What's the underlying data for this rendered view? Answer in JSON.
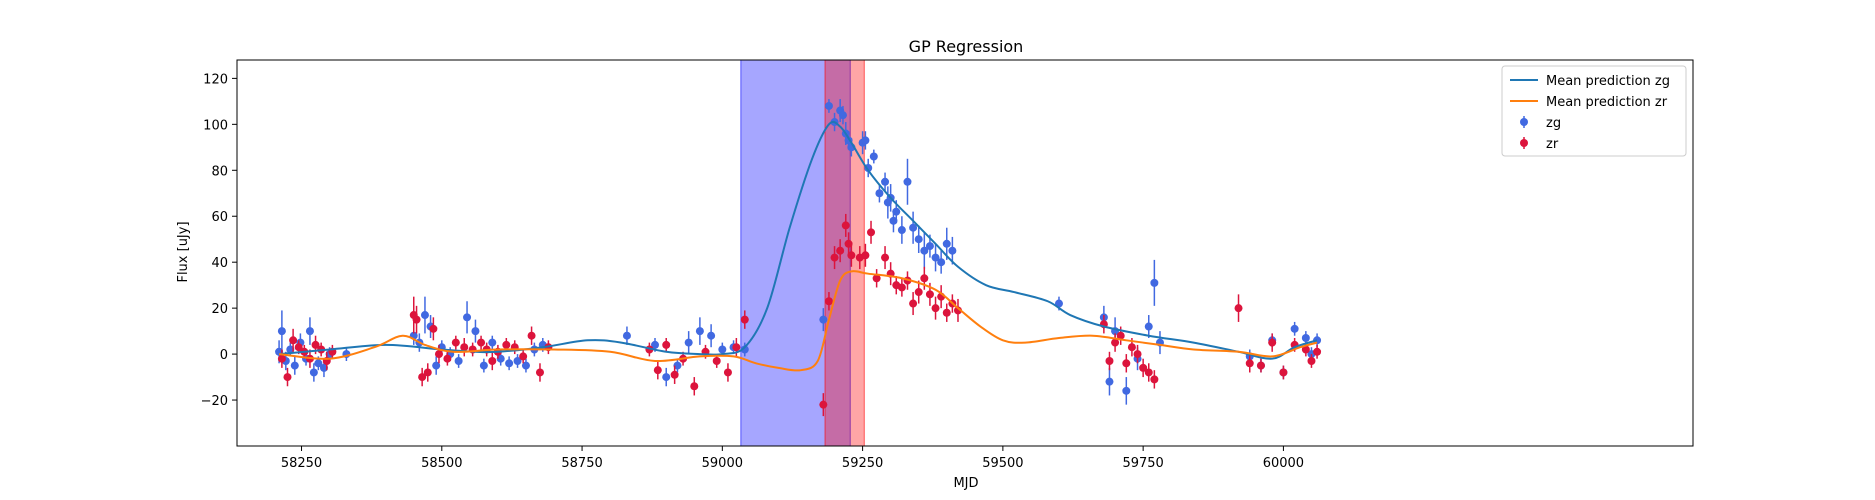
{
  "chart_data": {
    "type": "scatter",
    "title": "GP Regression",
    "xlabel": "MJD",
    "ylabel": "Flux [uJy]",
    "xlim": [
      58135,
      60730
    ],
    "ylim": [
      -40,
      128
    ],
    "xticks": [
      58250,
      58500,
      58750,
      59000,
      59250,
      59500,
      59750,
      60000
    ],
    "yticks": [
      -20,
      0,
      20,
      40,
      60,
      80,
      100,
      120
    ],
    "grid": false,
    "legend_position": "top-right",
    "colors": {
      "zg_line": "#1f77b4",
      "zr_line": "#ff7f0e",
      "zg_points": "#4169e1",
      "zr_points": "#dc143c",
      "zg_band": "#0000ff",
      "zr_band": "#ff0000"
    },
    "shaded_regions": [
      {
        "x0": 59033,
        "x1": 59228,
        "color": "#0000ff"
      },
      {
        "x0": 59183,
        "x1": 59253,
        "color": "#ff0000"
      }
    ],
    "lines": [
      {
        "name": "Mean prediction zg",
        "color": "#1f77b4",
        "x": [
          58210,
          58300,
          58400,
          58500,
          58560,
          58600,
          58680,
          58760,
          58820,
          58900,
          58960,
          59000,
          59040,
          59080,
          59120,
          59160,
          59190,
          59210,
          59230,
          59260,
          59300,
          59340,
          59380,
          59420,
          59470,
          59520,
          59580,
          59620,
          59680,
          59760,
          59840,
          59920,
          59980,
          60020,
          60060
        ],
        "y": [
          0,
          2,
          4,
          2,
          1,
          1,
          3,
          6,
          5,
          1,
          0,
          0,
          3,
          20,
          55,
          85,
          100,
          99,
          92,
          80,
          68,
          58,
          48,
          38,
          30,
          27,
          23,
          17,
          12,
          8,
          5,
          1,
          -2,
          3,
          6
        ]
      },
      {
        "name": "Mean prediction zr",
        "color": "#ff7f0e",
        "x": [
          58210,
          58300,
          58380,
          58430,
          58470,
          58520,
          58600,
          58700,
          58800,
          58880,
          58960,
          59020,
          59060,
          59100,
          59140,
          59170,
          59190,
          59210,
          59230,
          59260,
          59320,
          59380,
          59420,
          59460,
          59500,
          59540,
          59600,
          59660,
          59720,
          59780,
          59840,
          59920,
          59980,
          60030,
          60060
        ],
        "y": [
          0,
          -2,
          3,
          8,
          4,
          1,
          2,
          2,
          1,
          -3,
          -1,
          -1,
          -4,
          -6,
          -7,
          -3,
          15,
          32,
          36,
          35,
          33,
          28,
          20,
          12,
          6,
          5,
          7,
          8,
          6,
          4,
          2,
          1,
          -1,
          3,
          5
        ]
      }
    ],
    "series": [
      {
        "name": "zg",
        "color": "#4169e1",
        "x": [
          58210,
          58215,
          58222,
          58230,
          58238,
          58248,
          58258,
          58265,
          58272,
          58280,
          58290,
          58300,
          58330,
          58450,
          58460,
          58470,
          58480,
          58490,
          58500,
          58515,
          58530,
          58545,
          58560,
          58575,
          58590,
          58605,
          58620,
          58635,
          58650,
          58665,
          58680,
          58830,
          58880,
          58900,
          58920,
          58940,
          58960,
          58980,
          59000,
          59020,
          59040,
          59180,
          59190,
          59200,
          59210,
          59215,
          59220,
          59225,
          59230,
          59250,
          59255,
          59260,
          59270,
          59280,
          59290,
          59295,
          59300,
          59305,
          59310,
          59320,
          59330,
          59340,
          59350,
          59360,
          59370,
          59380,
          59390,
          59400,
          59410,
          59600,
          59680,
          59690,
          59700,
          59720,
          59740,
          59760,
          59770,
          59780,
          59940,
          59960,
          59980,
          60000,
          60020,
          60040,
          60050,
          60060
        ],
        "y": [
          1,
          10,
          -3,
          2,
          -5,
          5,
          -2,
          10,
          -8,
          -4,
          -6,
          0,
          0,
          8,
          5,
          17,
          12,
          -5,
          3,
          0,
          -3,
          16,
          10,
          -5,
          5,
          -2,
          -4,
          -3,
          -5,
          2,
          4,
          8,
          4,
          -10,
          -5,
          5,
          10,
          8,
          2,
          3,
          2,
          15,
          108,
          101,
          106,
          104,
          96,
          93,
          90,
          92,
          93,
          81,
          86,
          70,
          75,
          66,
          68,
          58,
          62,
          54,
          75,
          55,
          50,
          45,
          47,
          42,
          40,
          48,
          45,
          22,
          16,
          -12,
          10,
          -16,
          -2,
          12,
          31,
          5,
          -1,
          -5,
          6,
          -8,
          11,
          7,
          0,
          6
        ],
        "err": [
          5,
          9,
          4,
          3,
          4,
          4,
          3,
          6,
          4,
          3,
          4,
          3,
          3,
          4,
          4,
          8,
          5,
          4,
          3,
          3,
          3,
          7,
          5,
          3,
          3,
          3,
          3,
          3,
          3,
          3,
          3,
          4,
          3,
          4,
          3,
          5,
          6,
          5,
          3,
          3,
          3,
          5,
          3,
          4,
          5,
          4,
          5,
          4,
          4,
          5,
          4,
          4,
          3,
          4,
          4,
          7,
          6,
          5,
          5,
          6,
          10,
          7,
          6,
          8,
          5,
          6,
          5,
          7,
          6,
          3,
          5,
          6,
          6,
          6,
          5,
          5,
          10,
          5,
          3,
          3,
          3,
          3,
          3,
          3,
          3,
          3
        ]
      },
      {
        "name": "zr",
        "color": "#dc143c",
        "x": [
          58215,
          58225,
          58235,
          58245,
          58255,
          58265,
          58275,
          58285,
          58295,
          58305,
          58450,
          58455,
          58465,
          58475,
          58485,
          58495,
          58510,
          58525,
          58540,
          58555,
          58570,
          58580,
          58590,
          58600,
          58615,
          58630,
          58645,
          58660,
          58675,
          58690,
          58870,
          58885,
          58900,
          58915,
          58930,
          58950,
          58970,
          58990,
          59010,
          59025,
          59040,
          59180,
          59190,
          59200,
          59210,
          59220,
          59225,
          59230,
          59245,
          59255,
          59265,
          59275,
          59290,
          59300,
          59310,
          59320,
          59330,
          59340,
          59350,
          59360,
          59370,
          59380,
          59390,
          59400,
          59410,
          59420,
          59680,
          59690,
          59700,
          59710,
          59720,
          59730,
          59740,
          59750,
          59760,
          59770,
          59920,
          59940,
          59960,
          59980,
          60000,
          60020,
          60040,
          60050,
          60060
        ],
        "y": [
          -2,
          -10,
          6,
          3,
          1,
          -2,
          4,
          2,
          -3,
          1,
          17,
          15,
          -10,
          -8,
          11,
          0,
          -2,
          5,
          3,
          2,
          5,
          2,
          -3,
          1,
          4,
          3,
          -1,
          8,
          -8,
          3,
          2,
          -7,
          4,
          -9,
          -2,
          -14,
          1,
          -3,
          -8,
          3,
          15,
          -22,
          23,
          42,
          45,
          56,
          48,
          43,
          42,
          43,
          53,
          33,
          42,
          35,
          30,
          29,
          32,
          22,
          27,
          33,
          26,
          20,
          25,
          18,
          22,
          19,
          13,
          -3,
          5,
          8,
          -4,
          3,
          0,
          -6,
          -8,
          -11,
          20,
          -4,
          -5,
          5,
          -8,
          4,
          2,
          -3,
          1
        ],
        "err": [
          4,
          4,
          5,
          3,
          3,
          4,
          4,
          3,
          4,
          3,
          8,
          6,
          4,
          4,
          5,
          4,
          3,
          3,
          4,
          3,
          3,
          3,
          4,
          3,
          3,
          3,
          3,
          4,
          4,
          3,
          3,
          4,
          3,
          4,
          3,
          4,
          3,
          3,
          4,
          4,
          4,
          5,
          4,
          5,
          5,
          5,
          5,
          5,
          5,
          5,
          5,
          4,
          5,
          5,
          4,
          4,
          4,
          5,
          5,
          5,
          5,
          5,
          5,
          4,
          4,
          5,
          4,
          4,
          4,
          4,
          4,
          4,
          4,
          4,
          4,
          4,
          6,
          4,
          3,
          4,
          3,
          3,
          3,
          3,
          3
        ]
      }
    ]
  }
}
